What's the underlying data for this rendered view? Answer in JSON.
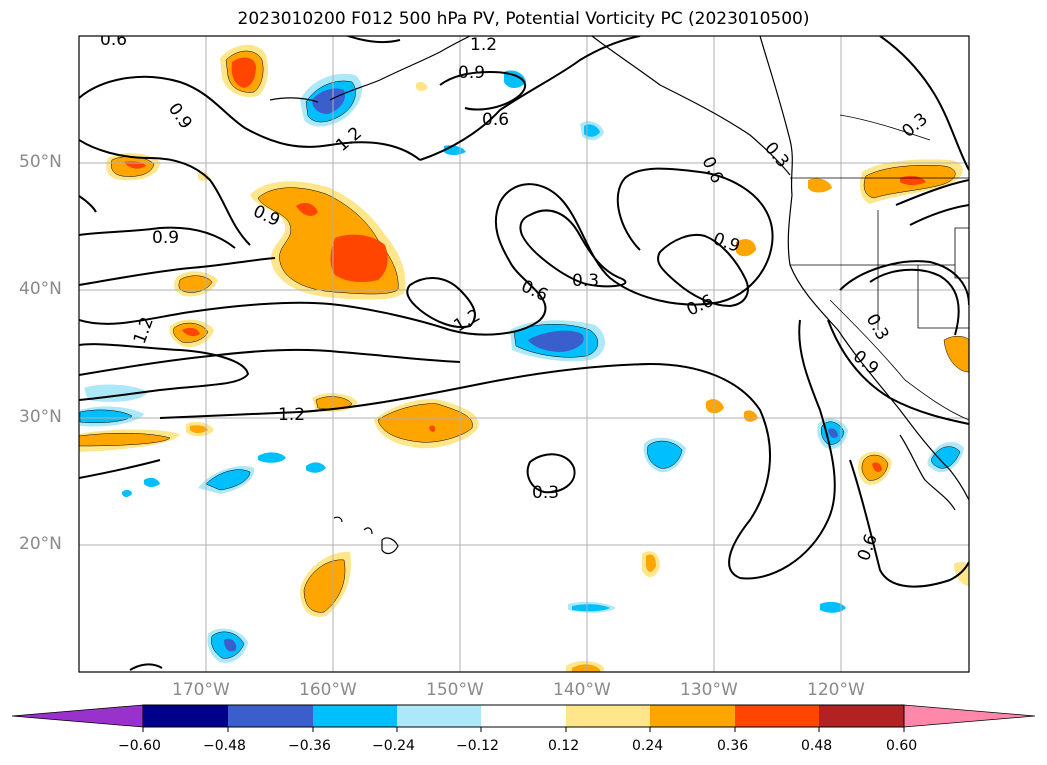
{
  "title": "2023010200 F012 500 hPa PV, Potential Vorticity PC (2023010500)",
  "lat_labels": [
    "50°N",
    "40°N",
    "30°N",
    "20°N"
  ],
  "lon_labels": [
    "170°W",
    "160°W",
    "150°W",
    "140°W",
    "130°W",
    "120°W"
  ],
  "contour_labels": [
    "0.6",
    "1.2",
    "0.9",
    "0.9",
    "0.6",
    "1.2",
    "0.9",
    "0.9",
    "0.6",
    "0.3",
    "0.6",
    "0.3",
    "0.9",
    "0.3",
    "1.2",
    "1.2",
    "0.6",
    "1.2",
    "0.3",
    "0.3",
    "0.9",
    "0.6",
    "0.3"
  ],
  "colorbar": {
    "ticks": [
      "−0.60",
      "−0.48",
      "−0.36",
      "−0.24",
      "−0.12",
      "0.12",
      "0.24",
      "0.36",
      "0.48",
      "0.60"
    ],
    "colors": [
      "#9932cc",
      "#00008b",
      "#3a5fcd",
      "#00bfff",
      "#ade8f8",
      "#ffffff",
      "#ffe68a",
      "#ffa500",
      "#ff4500",
      "#b22222",
      "#ff88aa"
    ]
  },
  "colors": {
    "neg_strong": "#3a5fcd",
    "neg_mid": "#00bfff",
    "neg_weak": "#ade8f8",
    "pos_weak": "#ffe68a",
    "pos_mid": "#ffa500",
    "pos_strong": "#ff4500",
    "grid": "#b0b0b0",
    "axis_label": "#8a8a8a"
  }
}
